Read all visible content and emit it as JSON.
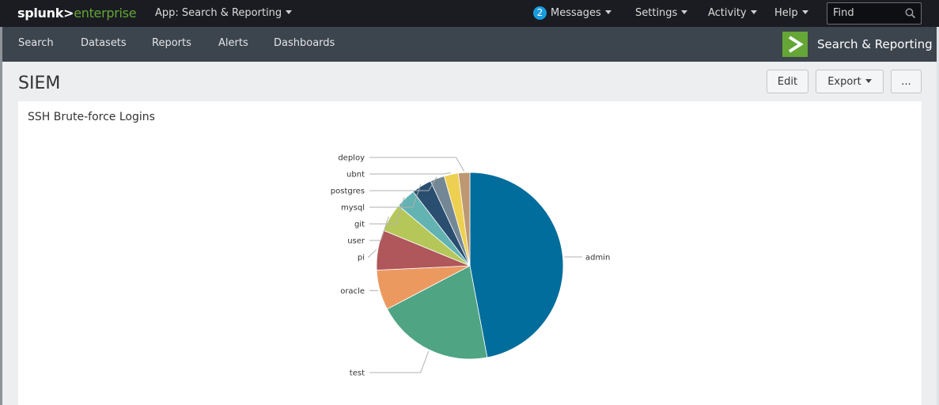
{
  "topbar": {
    "logo_primary": "splunk>",
    "logo_secondary": "enterprise",
    "app_menu": "App: Search & Reporting",
    "messages_count": "2",
    "messages": "Messages",
    "settings": "Settings",
    "activity": "Activity",
    "help": "Help",
    "find_placeholder": "Find"
  },
  "appbar": {
    "nav": [
      "Search",
      "Datasets",
      "Reports",
      "Alerts",
      "Dashboards"
    ],
    "app_title": "Search & Reporting"
  },
  "dashboard": {
    "title": "SIEM",
    "edit": "Edit",
    "export": "Export",
    "more": "..."
  },
  "panel": {
    "title": "SSH Brute-force Logins"
  },
  "chart_data": {
    "type": "pie",
    "title": "SSH Brute-force Logins",
    "labels": [
      "admin",
      "test",
      "oracle",
      "pi",
      "user",
      "git",
      "mysql",
      "postgres",
      "ubnt",
      "deploy"
    ],
    "values": [
      47.5,
      20.5,
      7.0,
      7.0,
      5.0,
      3.5,
      3.5,
      2.5,
      2.5,
      2.0
    ],
    "colors": [
      "#006d9c",
      "#4fa484",
      "#ec9960",
      "#af575a",
      "#b6c75a",
      "#62b3b2",
      "#294e70",
      "#738795",
      "#edd051",
      "#bd9872"
    ]
  }
}
